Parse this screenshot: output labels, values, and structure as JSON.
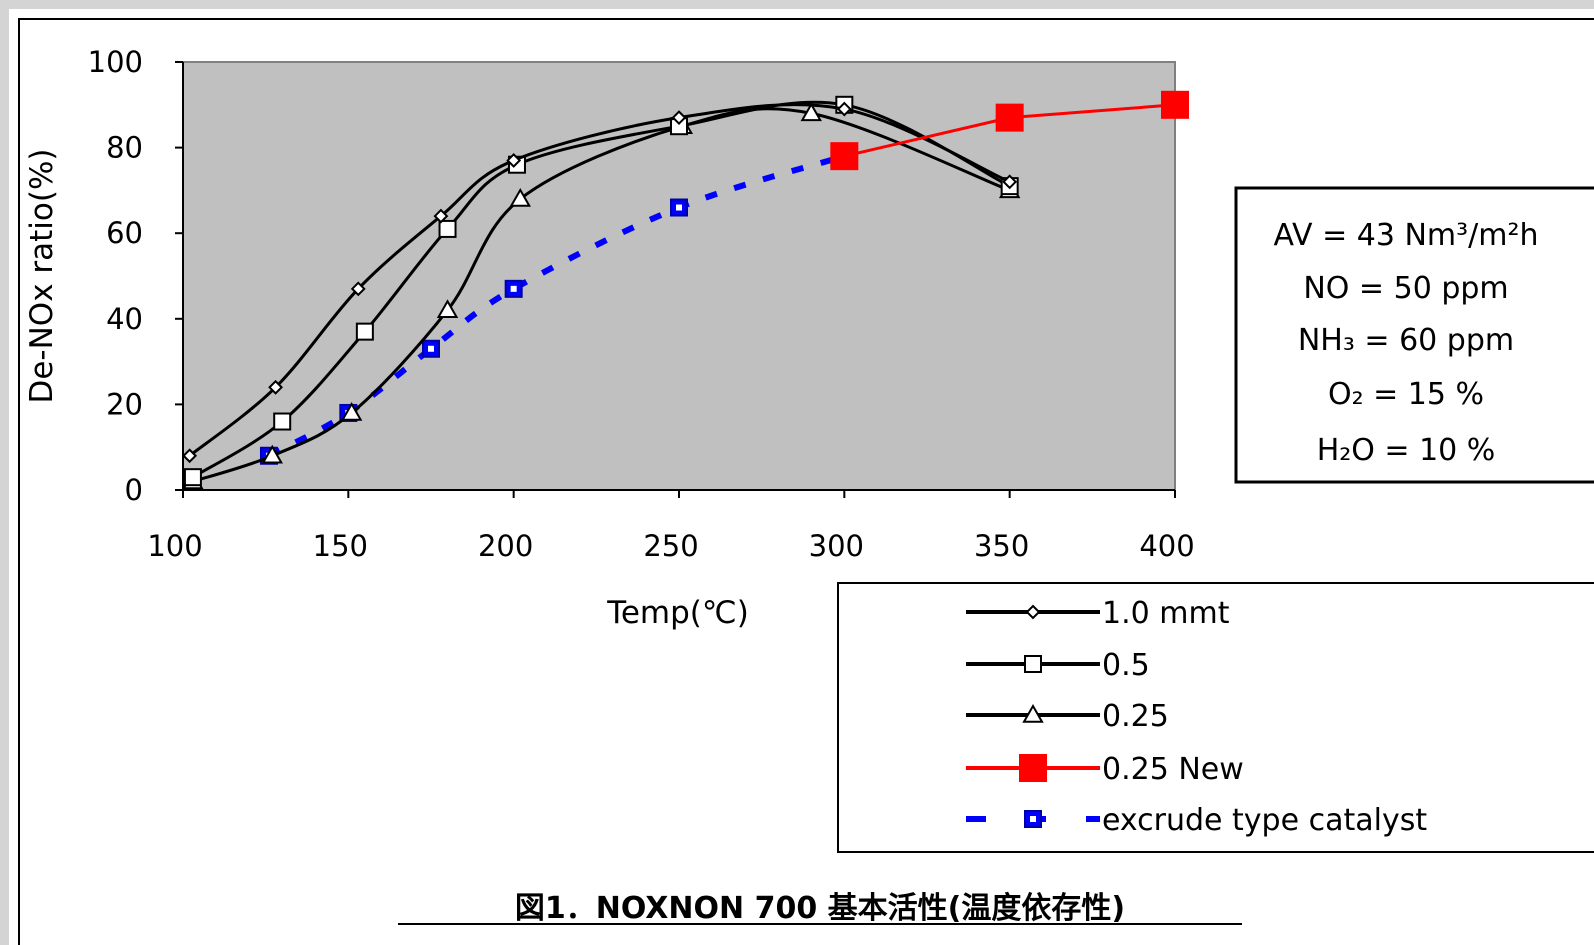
{
  "chart_data": {
    "type": "line",
    "xlabel": "Temp(℃)",
    "ylabel": "De-NOx ratio(%)",
    "xlim": [
      100,
      400
    ],
    "ylim": [
      0,
      100
    ],
    "x_ticks": [
      "100",
      "150",
      "200",
      "250",
      "300",
      "350",
      "400"
    ],
    "y_ticks": [
      "0",
      "20",
      "40",
      "60",
      "80",
      "100"
    ],
    "plot_background": "#c0c0c0",
    "grid": false,
    "legend_position": "bottom-right",
    "series": [
      {
        "name": "1.0 mmt",
        "color": "#000000",
        "marker": "diamond",
        "x": [
          102,
          128,
          153,
          178,
          200,
          250,
          300,
          350
        ],
        "y": [
          8,
          24,
          47,
          64,
          77,
          87,
          89,
          72
        ]
      },
      {
        "name": "0.5",
        "color": "#000000",
        "marker": "square",
        "x": [
          103,
          130,
          155,
          180,
          201,
          250,
          300,
          350
        ],
        "y": [
          3,
          16,
          37,
          61,
          76,
          85,
          90,
          71
        ]
      },
      {
        "name": "0.25",
        "color": "#000000",
        "marker": "triangle",
        "x": [
          103,
          127,
          151,
          180,
          202,
          251,
          290,
          350
        ],
        "y": [
          2,
          8,
          18,
          42,
          68,
          85,
          88,
          70
        ]
      },
      {
        "name": "0.25 New",
        "color": "#ff0000",
        "marker": "filled-square",
        "x": [
          300,
          350,
          400
        ],
        "y": [
          78,
          87,
          90
        ]
      },
      {
        "name": "excrude type catalyst",
        "color": "#0000ff",
        "marker": "blue-square",
        "dashed": true,
        "x": [
          126,
          150,
          175,
          200,
          250,
          300
        ],
        "y": [
          8,
          18,
          33,
          47,
          66,
          78
        ]
      }
    ]
  },
  "conditions": [
    "AV = 43 Nm³/m²h",
    "NO = 50 ppm",
    "NH₃ = 60 ppm",
    "O₂ = 15 %",
    "H₂O = 10 %"
  ],
  "caption": "図1．NOXNON 700 基本活性(温度依存性)"
}
